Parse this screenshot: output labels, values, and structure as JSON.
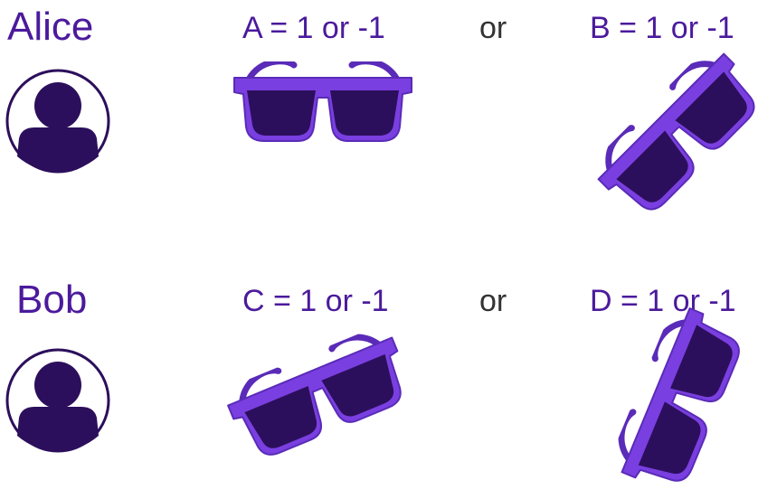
{
  "rows": [
    {
      "person": "Alice",
      "first_setting": "A = 1 or -1",
      "connector": "or",
      "second_setting": "B = 1 or -1"
    },
    {
      "person": "Bob",
      "first_setting": "C = 1 or -1",
      "connector": "or",
      "second_setting": "D = 1 or -1"
    }
  ],
  "icons": {
    "avatar": "user-avatar-icon",
    "glasses": "sunglasses-icon"
  },
  "colors": {
    "label": "#4b1a9c",
    "avatar": "#2c0f5c",
    "frame": "#7a3fe0",
    "frame_edge": "#5a2bb8",
    "lens": "#2c0f5c",
    "connector": "#333333"
  }
}
